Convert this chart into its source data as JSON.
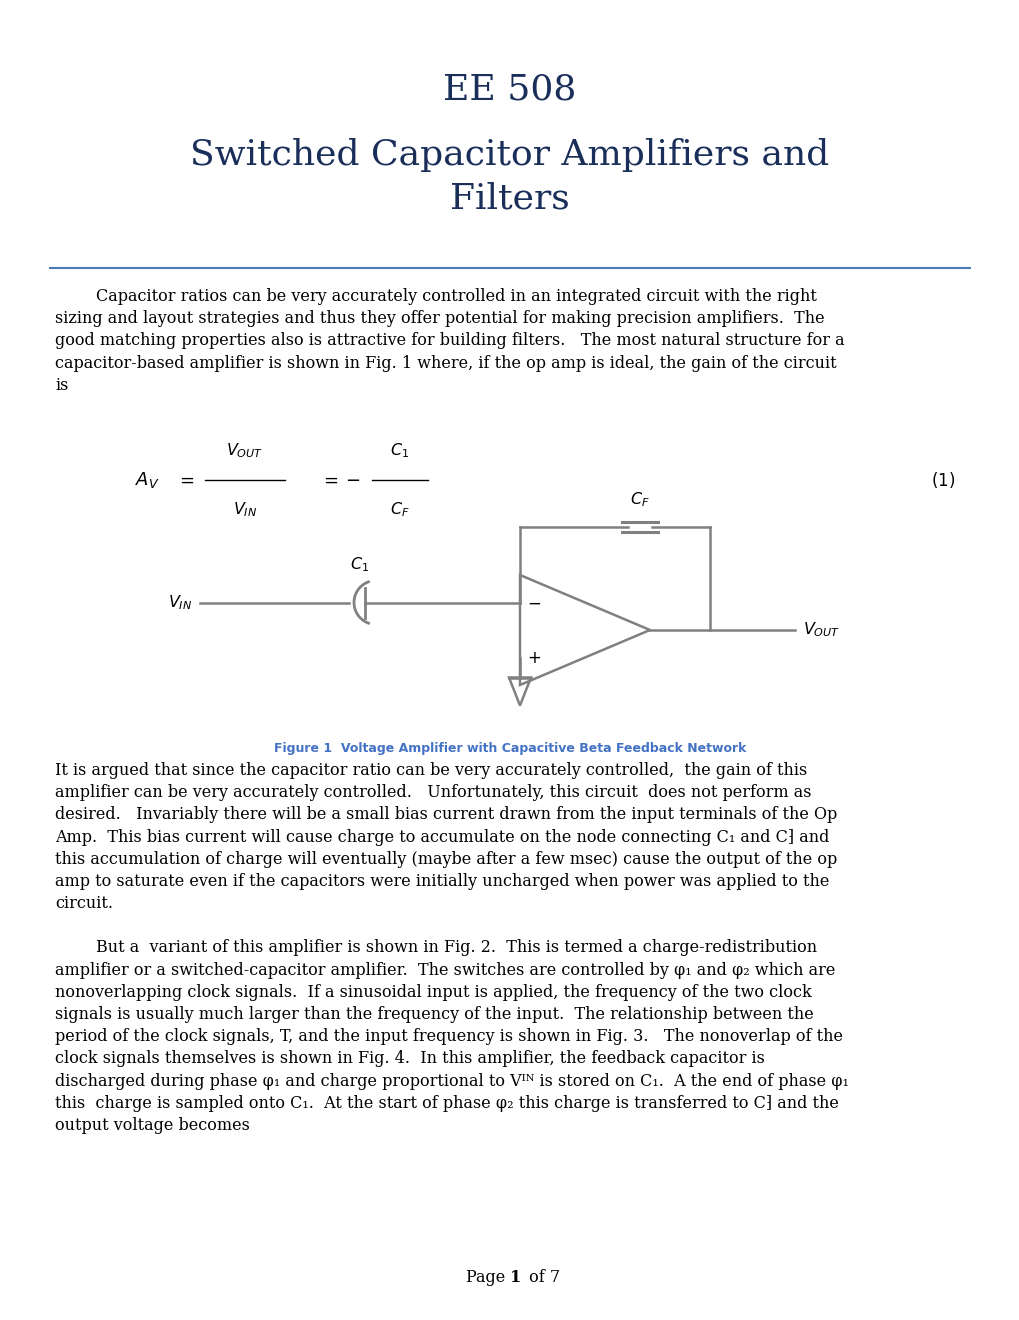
{
  "title_line1": "EE 508",
  "title_line2": "Switched Capacitor Amplifiers and\nFilters",
  "title_color": "#1a2e5a",
  "separator_color": "#4a7ab5",
  "body_color": "#000000",
  "fig_cap": "Figure 1  Voltage Amplifier with Capacitive Beta Feedback Network",
  "fig_cap_color": "#4472c4",
  "para1_lines": [
    "        Capacitor ratios can be very accurately controlled in an integrated circuit with the right",
    "sizing and layout strategies and thus they offer potential for making precision amplifiers.  The",
    "good matching properties also is attractive for building filters.   The most natural structure for a",
    "capacitor-based amplifier is shown in Fig. 1 where, if the op amp is ideal, the gain of the circuit",
    "is"
  ],
  "para2_lines": [
    "It is argued that since the capacitor ratio can be very accurately controlled,  the gain of this",
    "amplifier can be very accurately controlled.   Unfortunately, this circuit  does not perform as",
    "desired.   Invariably there will be a small bias current drawn from the input terminals of the Op",
    "Amp.  This bias current will cause charge to accumulate on the node connecting C₁ and C⁆ and",
    "this accumulation of charge will eventually (maybe after a few msec) cause the output of the op",
    "amp to saturate even if the capacitors were initially uncharged when power was applied to the",
    "circuit."
  ],
  "para3_lines": [
    "        But a  variant of this amplifier is shown in Fig. 2.  This is termed a charge-redistribution",
    "amplifier or a switched-capacitor amplifier.  The switches are controlled by φ₁ and φ₂ which are",
    "nonoverlapping clock signals.  If a sinusoidal input is applied, the frequency of the two clock",
    "signals is usually much larger than the frequency of the input.  The relationship between the",
    "period of the clock signals, T, and the input frequency is shown in Fig. 3.   The nonoverlap of the",
    "clock signals themselves is shown in Fig. 4.  In this amplifier, the feedback capacitor is",
    "discharged during phase φ₁ and charge proportional to Vᴵᴺ is stored on C₁.  A the end of phase φ₁",
    "this  charge is sampled onto C₁.  At the start of phase φ₂ this charge is transferred to C⁆ and the",
    "output voltage becomes"
  ],
  "circuit_color": "#808080",
  "bg": "#ffffff"
}
